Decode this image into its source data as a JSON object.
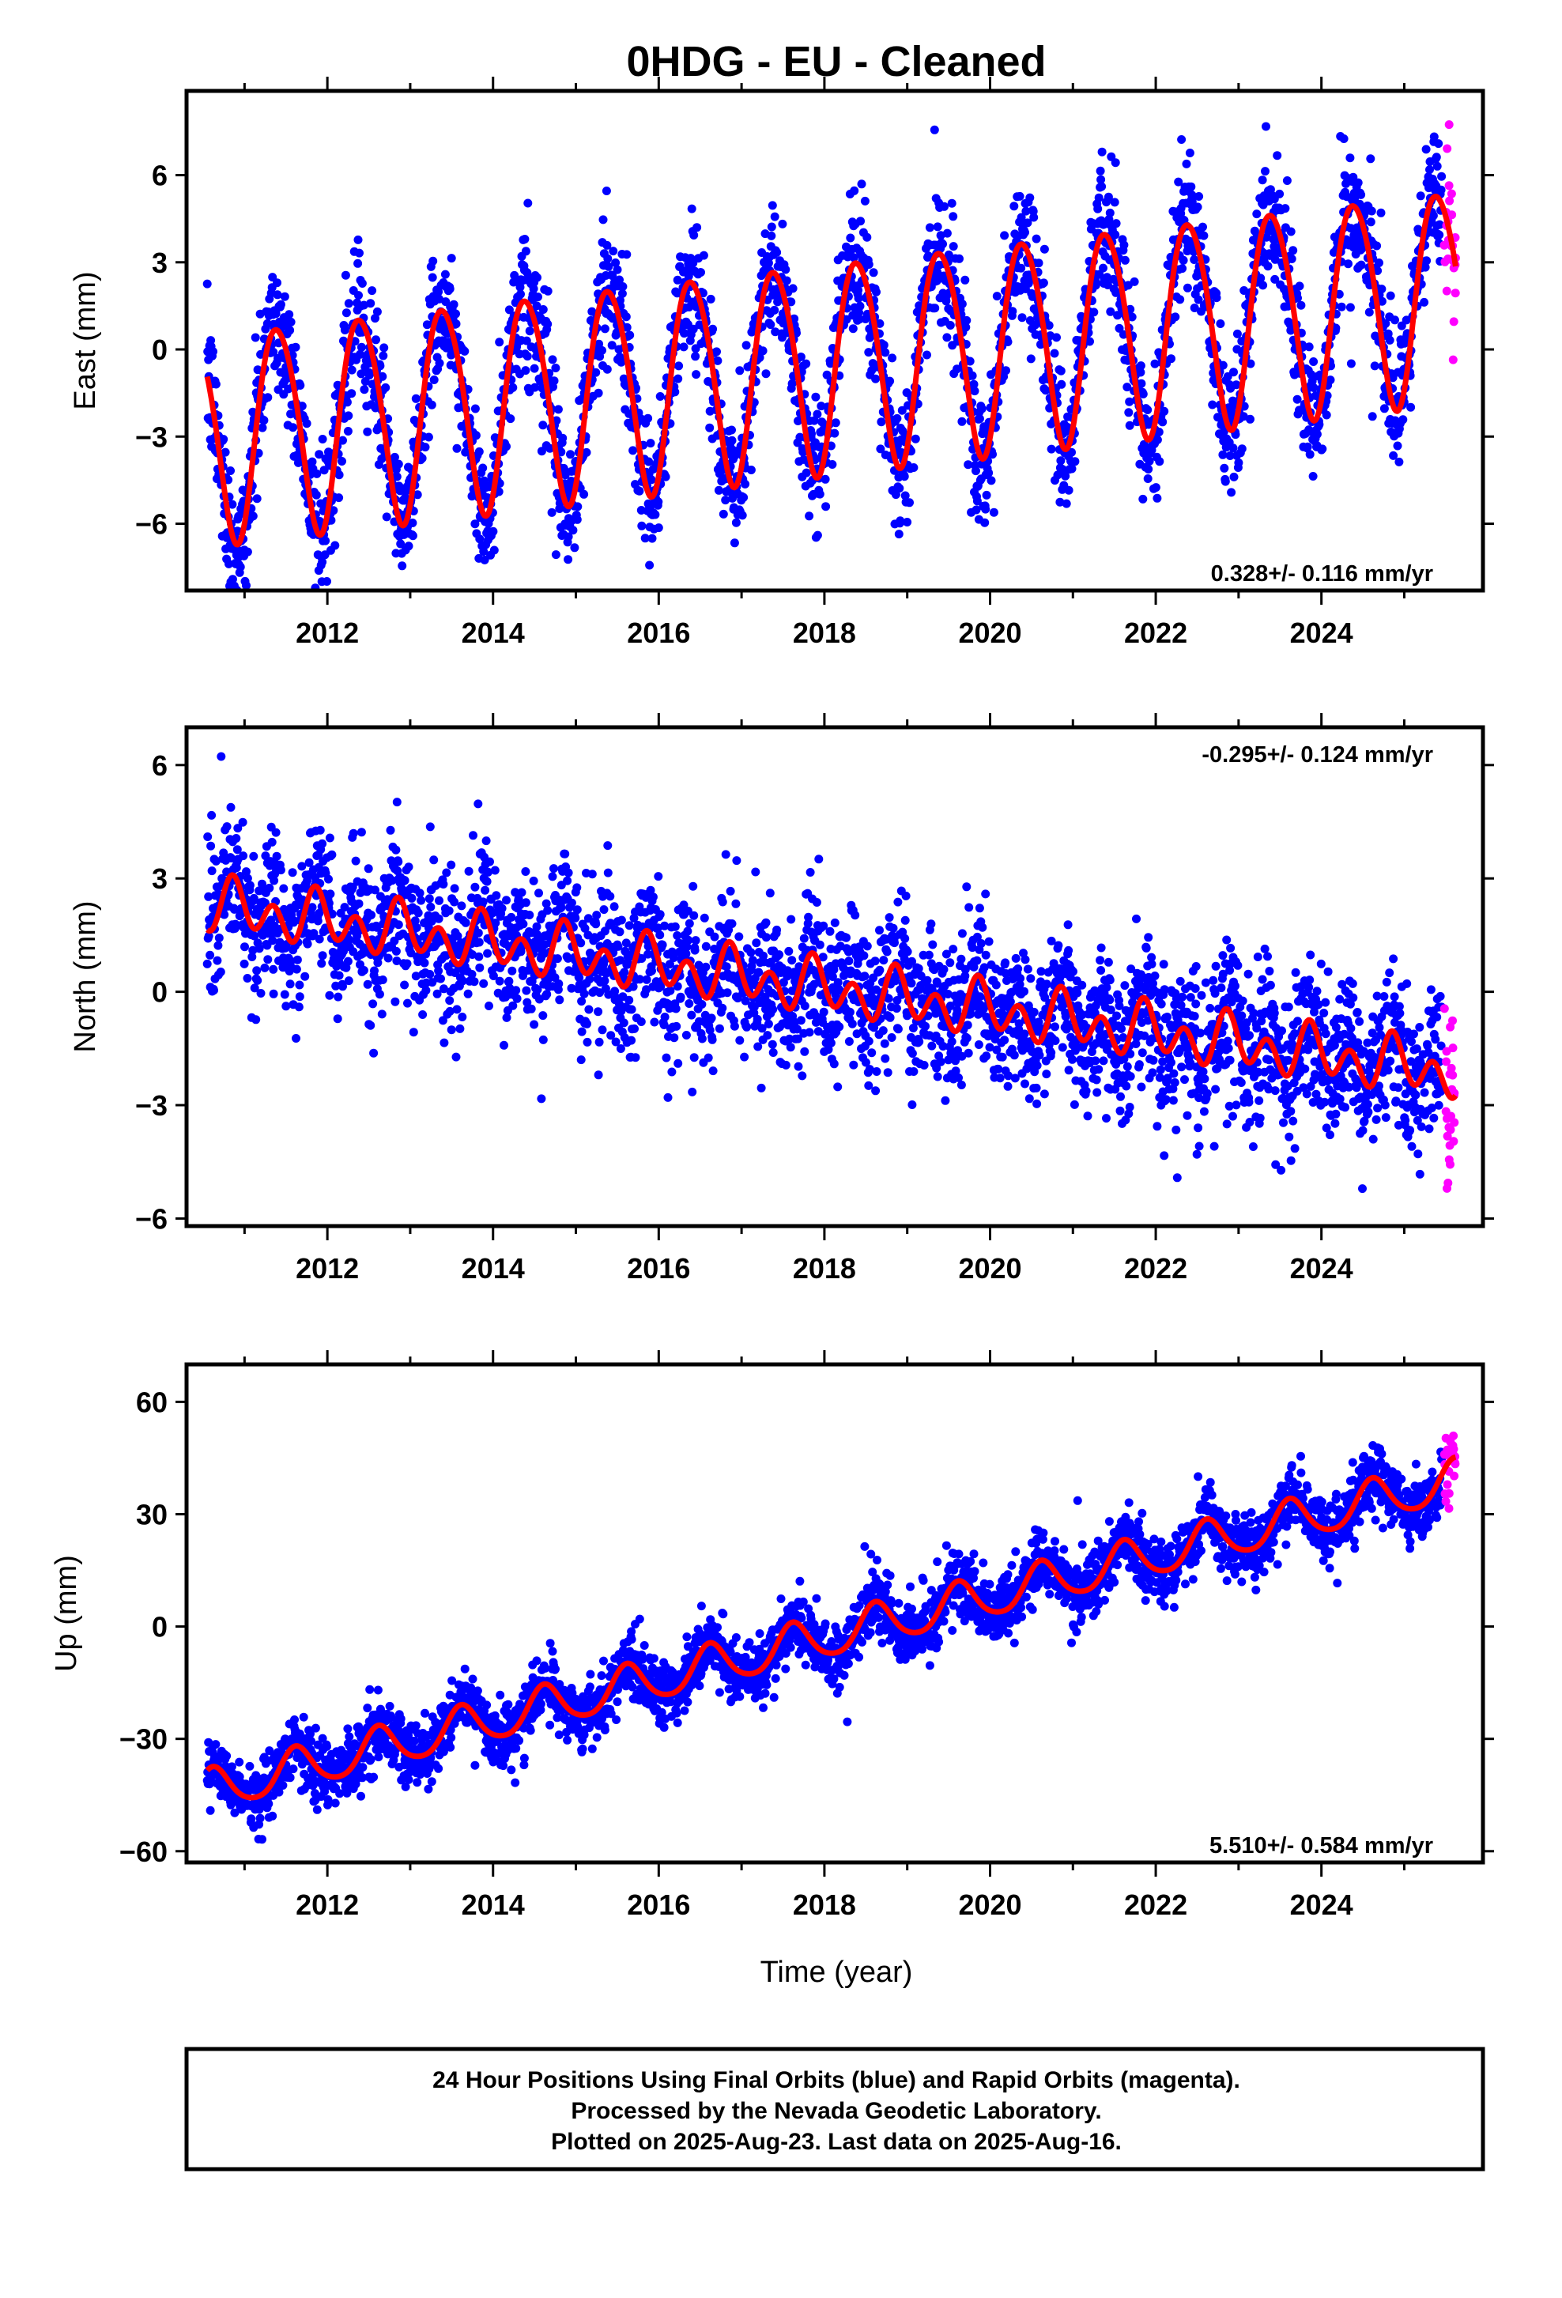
{
  "title": "0HDG  - EU - Cleaned",
  "colors": {
    "final": "#0000ff",
    "rapid": "#ff00ff",
    "model": "#ff0000",
    "axis": "#000000"
  },
  "chart_data": [
    {
      "type": "scatter",
      "component": "East",
      "ylabel": "East (mm)",
      "xlim": [
        2010.3,
        2025.95
      ],
      "ylim": [
        -8.3,
        8.9
      ],
      "yticks": [
        -6,
        -3,
        0,
        3,
        6
      ],
      "ytick_labels": [
        "−6",
        "−3",
        "0",
        "3",
        "6"
      ],
      "xticks": [
        2012,
        2014,
        2016,
        2018,
        2020,
        2022,
        2024
      ],
      "xtick_labels": [
        "2012",
        "2014",
        "2016",
        "2018",
        "2020",
        "2022",
        "2024"
      ],
      "rate_label": "0.328+/- 0.116 mm/yr",
      "rate_position": "bottom-right",
      "data_start": 2010.55,
      "data_end": 2025.62,
      "rapid_start": 2025.45,
      "series": [
        {
          "name": "",
          "role": "final",
          "color": "#0000ff"
        },
        {
          "name": "",
          "role": "rapid",
          "color": "#ff00ff"
        },
        {
          "name": "",
          "role": "model",
          "color": "#ff0000"
        }
      ],
      "model": {
        "trend": 0.328,
        "ref_year": 2018.0,
        "offset": -0.5,
        "annual_amp": 3.6,
        "annual_peak": 0.4,
        "semiannual_amp": 0.35,
        "semiannual_peak": 0.2,
        "scatter_sd": 1.15
      }
    },
    {
      "type": "scatter",
      "component": "North",
      "ylabel": "North (mm)",
      "xlim": [
        2010.3,
        2025.95
      ],
      "ylim": [
        -6.2,
        7.0
      ],
      "yticks": [
        -6,
        -3,
        0,
        3,
        6
      ],
      "ytick_labels": [
        "−6",
        "−3",
        "0",
        "3",
        "6"
      ],
      "xticks": [
        2012,
        2014,
        2016,
        2018,
        2020,
        2022,
        2024
      ],
      "xtick_labels": [
        "2012",
        "2014",
        "2016",
        "2018",
        "2020",
        "2022",
        "2024"
      ],
      "rate_label": "-0.295+/- 0.124 mm/yr",
      "rate_position": "top-right",
      "data_start": 2010.55,
      "data_end": 2025.62,
      "rapid_start": 2025.45,
      "series": [
        {
          "name": "",
          "role": "final",
          "color": "#0000ff"
        },
        {
          "name": "",
          "role": "rapid",
          "color": "#ff00ff"
        },
        {
          "name": "",
          "role": "model",
          "color": "#ff0000"
        }
      ],
      "model": {
        "trend": -0.295,
        "ref_year": 2018.0,
        "offset": 0.1,
        "annual_amp": 0.35,
        "annual_peak": 0.9,
        "semiannual_amp": 0.55,
        "semiannual_peak": 0.35,
        "scatter_sd": 0.95
      }
    },
    {
      "type": "scatter",
      "component": "Up",
      "ylabel": "Up (mm)",
      "xlim": [
        2010.3,
        2025.95
      ],
      "ylim": [
        -63,
        70
      ],
      "yticks": [
        -60,
        -30,
        0,
        30,
        60
      ],
      "ytick_labels": [
        "−60",
        "−30",
        "0",
        "30",
        "60"
      ],
      "xticks": [
        2012,
        2014,
        2016,
        2018,
        2020,
        2022,
        2024
      ],
      "xtick_labels": [
        "2012",
        "2014",
        "2016",
        "2018",
        "2020",
        "2022",
        "2024"
      ],
      "rate_label": "5.510+/- 0.584 mm/yr",
      "rate_position": "bottom-right",
      "data_start": 2010.55,
      "data_end": 2025.62,
      "rapid_start": 2025.45,
      "series": [
        {
          "name": "",
          "role": "final",
          "color": "#0000ff"
        },
        {
          "name": "",
          "role": "rapid",
          "color": "#ff00ff"
        },
        {
          "name": "",
          "role": "model",
          "color": "#ff0000"
        }
      ],
      "model": {
        "trend": 5.51,
        "ref_year": 2018.0,
        "offset": -3.0,
        "annual_amp": 5.5,
        "annual_peak": 0.62,
        "semiannual_amp": 0.8,
        "semiannual_peak": 0.1,
        "scatter_sd": 4.2
      }
    }
  ],
  "xlabel": "Time (year)",
  "footer": {
    "line1": "24 Hour Positions Using Final Orbits (blue) and Rapid Orbits (magenta).",
    "line2": "Processed by the Nevada Geodetic Laboratory.",
    "line3": "Plotted on 2025-Aug-23. Last data on 2025-Aug-16."
  }
}
